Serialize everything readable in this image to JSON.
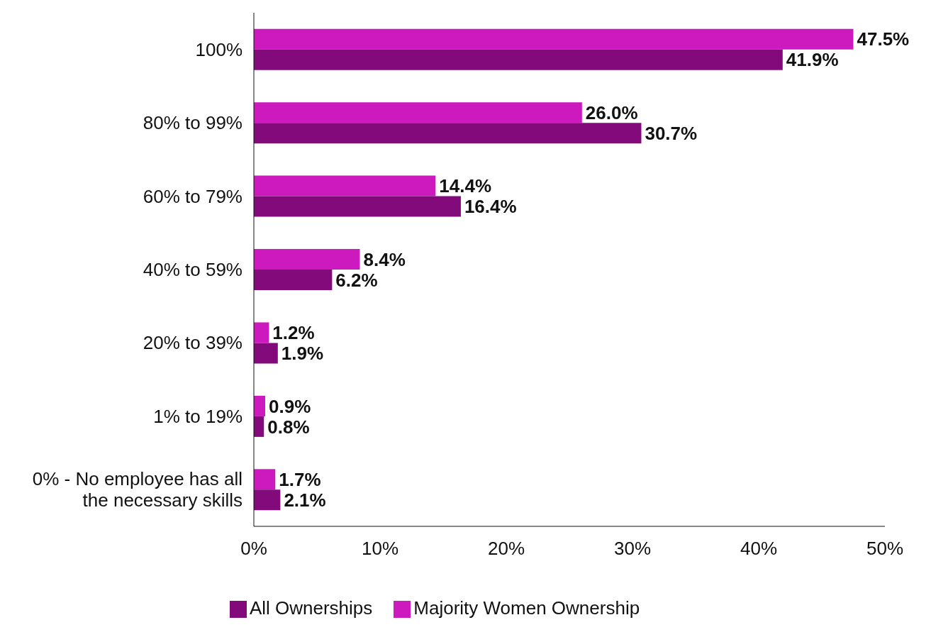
{
  "chart_data": {
    "type": "bar",
    "orientation": "horizontal",
    "categories": [
      "100%",
      "80% to 99%",
      "60% to 79%",
      "40% to 59%",
      "20% to 39%",
      "1% to 19%",
      "0% - No employee has all the necessary skills"
    ],
    "series": [
      {
        "name": "Majority Women Ownership",
        "color": "#cc1abe",
        "values": [
          47.5,
          26.0,
          14.4,
          8.4,
          1.2,
          0.9,
          1.7
        ],
        "value_labels": [
          "47.5%",
          "26.0%",
          "14.4%",
          "8.4%",
          "1.2%",
          "0.9%",
          "1.7%"
        ]
      },
      {
        "name": "All Ownerships",
        "color": "#820a7b",
        "values": [
          41.9,
          30.7,
          16.4,
          6.2,
          1.9,
          0.8,
          2.1
        ],
        "value_labels": [
          "41.9%",
          "30.7%",
          "16.4%",
          "6.2%",
          "1.9%",
          "0.8%",
          "2.1%"
        ]
      }
    ],
    "xlim": [
      0,
      50
    ],
    "xticks": [
      {
        "value": 0,
        "label": "0%"
      },
      {
        "value": 10,
        "label": "10%"
      },
      {
        "value": 20,
        "label": "20%"
      },
      {
        "value": 30,
        "label": "30%"
      },
      {
        "value": 40,
        "label": "40%"
      },
      {
        "value": 50,
        "label": "50%"
      }
    ],
    "grid": false,
    "legend": "bottom"
  }
}
